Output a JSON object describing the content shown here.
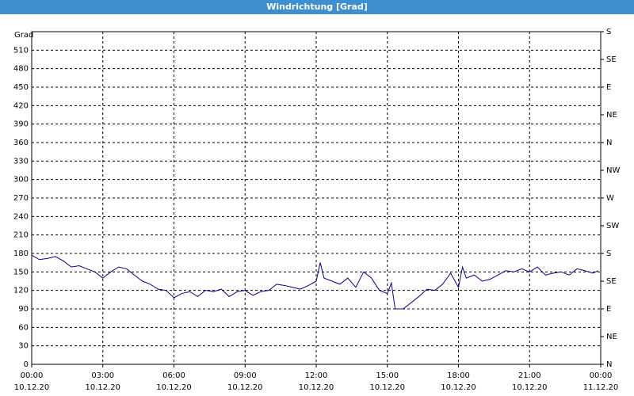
{
  "chart_data": {
    "type": "line",
    "title": "Windrichtung [Grad]",
    "y_label": "Grad",
    "x": [
      0,
      0.33,
      0.67,
      1,
      1.33,
      1.67,
      2,
      2.33,
      2.67,
      3,
      3.33,
      3.67,
      4,
      4.33,
      4.67,
      5,
      5.33,
      5.67,
      6,
      6.33,
      6.67,
      7,
      7.33,
      7.67,
      8,
      8.33,
      8.67,
      9,
      9.33,
      9.67,
      10,
      10.33,
      10.67,
      11,
      11.33,
      11.67,
      12,
      12.17,
      12.33,
      12.67,
      13,
      13.33,
      13.67,
      14,
      14.33,
      14.67,
      15,
      15.17,
      15.33,
      15.67,
      16,
      16.33,
      16.67,
      17,
      17.33,
      17.67,
      18,
      18.17,
      18.33,
      18.67,
      19,
      19.33,
      19.67,
      20,
      20.33,
      20.67,
      21,
      21.33,
      21.67,
      22,
      22.33,
      22.67,
      23,
      23.33,
      23.67,
      23.9
    ],
    "series": [
      {
        "name": "Windrichtung",
        "color": "#00008b",
        "values": [
          177,
          170,
          172,
          175,
          168,
          158,
          160,
          155,
          150,
          140,
          150,
          158,
          155,
          145,
          135,
          130,
          122,
          120,
          108,
          115,
          118,
          110,
          120,
          118,
          122,
          110,
          118,
          120,
          112,
          118,
          120,
          130,
          128,
          125,
          122,
          128,
          135,
          165,
          140,
          135,
          130,
          140,
          125,
          150,
          140,
          120,
          115,
          132,
          90,
          90,
          100,
          110,
          122,
          120,
          130,
          148,
          125,
          158,
          140,
          145,
          135,
          138,
          145,
          152,
          150,
          155,
          150,
          158,
          145,
          148,
          150,
          145,
          155,
          152,
          148,
          152
        ]
      }
    ],
    "xlim": [
      0,
      24
    ],
    "xticks": [
      {
        "value": 0,
        "label": "00:00"
      },
      {
        "value": 3,
        "label": "03:00"
      },
      {
        "value": 6,
        "label": "06:00"
      },
      {
        "value": 9,
        "label": "09:00"
      },
      {
        "value": 12,
        "label": "12:00"
      },
      {
        "value": 15,
        "label": "15:00"
      },
      {
        "value": 18,
        "label": "18:00"
      },
      {
        "value": 21,
        "label": "21:00"
      },
      {
        "value": 24,
        "label": "00:00"
      }
    ],
    "xtick_dates": [
      "10.12.20",
      "10.12.20",
      "10.12.20",
      "10.12.20",
      "10.12.20",
      "10.12.20",
      "10.12.20",
      "10.12.20",
      "11.12.20"
    ],
    "ylim": [
      0,
      540
    ],
    "yticks": [
      0,
      30,
      60,
      90,
      120,
      150,
      180,
      210,
      240,
      270,
      300,
      330,
      360,
      390,
      420,
      450,
      480,
      510
    ],
    "y2lim": [
      0,
      540
    ],
    "y2ticks": [
      {
        "value": 0,
        "label": "N"
      },
      {
        "value": 45,
        "label": "NE"
      },
      {
        "value": 90,
        "label": "E"
      },
      {
        "value": 135,
        "label": "SE"
      },
      {
        "value": 180,
        "label": "S"
      },
      {
        "value": 225,
        "label": "SW"
      },
      {
        "value": 270,
        "label": "W"
      },
      {
        "value": 315,
        "label": "NW"
      },
      {
        "value": 360,
        "label": "N"
      },
      {
        "value": 405,
        "label": "NE"
      },
      {
        "value": 450,
        "label": "E"
      },
      {
        "value": 495,
        "label": "SE"
      },
      {
        "value": 540,
        "label": "S"
      }
    ],
    "grid": true
  }
}
